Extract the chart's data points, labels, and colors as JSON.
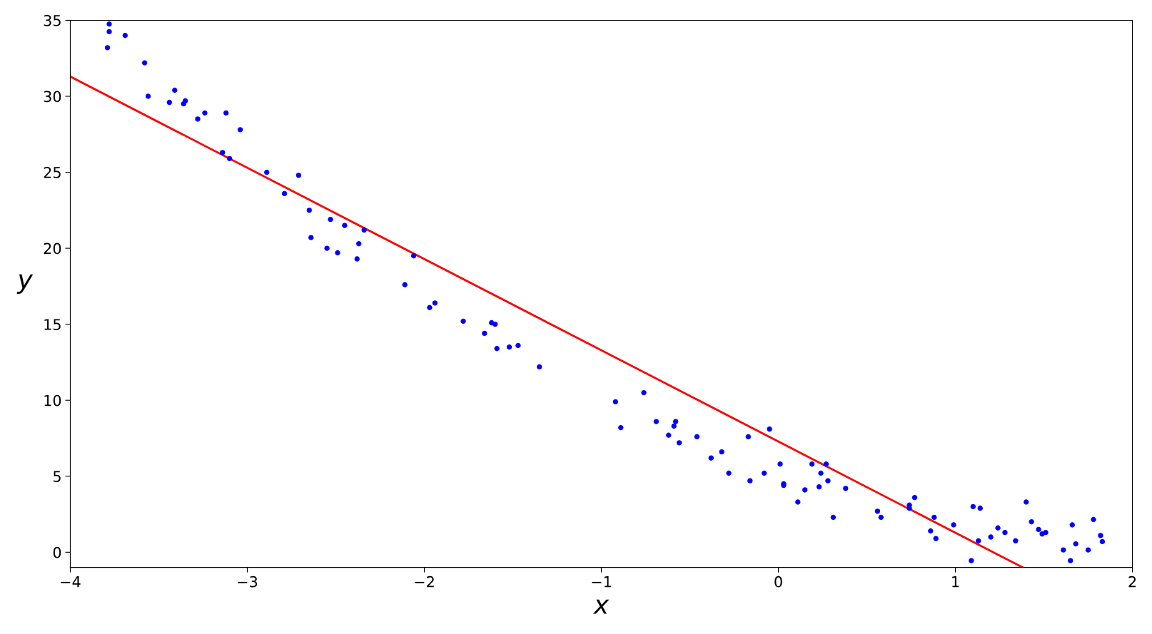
{
  "chart_data": {
    "type": "scatter",
    "xlabel": "x",
    "ylabel": "y",
    "xlim": [
      -4,
      2
    ],
    "xticks": [
      {
        "value": -4,
        "label": "−4"
      },
      {
        "value": -3,
        "label": "−3"
      },
      {
        "value": -2,
        "label": "−2"
      },
      {
        "value": -1,
        "label": "−1"
      },
      0,
      1,
      2
    ],
    "ylim": [
      -1,
      35
    ],
    "yticks": [
      0,
      5,
      10,
      15,
      20,
      25,
      30,
      35
    ],
    "grid": false,
    "legend": false,
    "marker": "circle",
    "series": [
      {
        "color": "#0000ff",
        "x": [
          -3.79,
          -3.78,
          -3.78,
          -3.69,
          -3.58,
          -3.56,
          -3.44,
          -3.41,
          -3.36,
          -3.35,
          -3.28,
          -3.24,
          -3.12,
          -3.14,
          -3.1,
          -3.04,
          -2.89,
          -2.79,
          -2.71,
          -2.65,
          -2.64,
          -2.55,
          -2.53,
          -2.49,
          -2.45,
          -2.38,
          -2.37,
          -2.34,
          -2.11,
          -2.06,
          -1.97,
          -1.94,
          -1.78,
          -1.66,
          -1.62,
          -1.6,
          -1.59,
          -1.52,
          -1.47,
          -1.35,
          -0.92,
          -0.89,
          -0.76,
          -0.69,
          -0.62,
          -0.59,
          -0.58,
          -0.56,
          -0.46,
          -0.38,
          -0.32,
          -0.28,
          -0.17,
          -0.16,
          -0.08,
          -0.05,
          0.01,
          0.03,
          0.03,
          0.11,
          0.15,
          0.19,
          0.23,
          0.24,
          0.27,
          0.28,
          0.31,
          0.38,
          0.56,
          0.58,
          0.74,
          0.74,
          0.77,
          0.86,
          0.88,
          0.89,
          0.99,
          1.09,
          1.1,
          1.13,
          1.14,
          1.2,
          1.24,
          1.28,
          1.34,
          1.4,
          1.43,
          1.47,
          1.49,
          1.51,
          1.61,
          1.65,
          1.66,
          1.68,
          1.75,
          1.78,
          1.82,
          1.83
        ],
        "values": [
          33.2,
          34.75,
          34.25,
          34.0,
          32.2,
          30.0,
          29.6,
          30.4,
          29.5,
          29.7,
          28.5,
          28.9,
          28.9,
          26.3,
          25.9,
          27.8,
          25.0,
          23.6,
          24.8,
          22.5,
          20.7,
          20.0,
          21.9,
          19.7,
          21.5,
          19.3,
          20.3,
          21.2,
          17.6,
          19.5,
          16.1,
          16.4,
          15.2,
          14.4,
          15.1,
          15.0,
          13.4,
          13.5,
          13.6,
          12.2,
          9.9,
          8.2,
          10.5,
          8.6,
          7.7,
          8.3,
          8.6,
          7.2,
          7.6,
          6.2,
          6.6,
          5.2,
          7.6,
          4.7,
          5.2,
          8.1,
          5.8,
          4.5,
          4.4,
          3.3,
          4.1,
          5.8,
          4.3,
          5.2,
          5.8,
          4.7,
          2.3,
          4.2,
          2.7,
          2.3,
          3.1,
          2.9,
          3.6,
          1.4,
          2.3,
          0.9,
          1.8,
          -0.55,
          3.0,
          0.75,
          2.9,
          1.0,
          1.6,
          1.3,
          0.75,
          3.3,
          2.0,
          1.5,
          1.2,
          1.3,
          0.15,
          -0.55,
          1.8,
          0.55,
          0.15,
          2.15,
          1.1,
          0.7
        ]
      },
      {
        "type": "line",
        "color": "#ff0000",
        "line_style": "solid",
        "marker": "none",
        "x": [
          -4,
          1.38
        ],
        "values": [
          31.3,
          -1.0
        ]
      }
    ]
  }
}
